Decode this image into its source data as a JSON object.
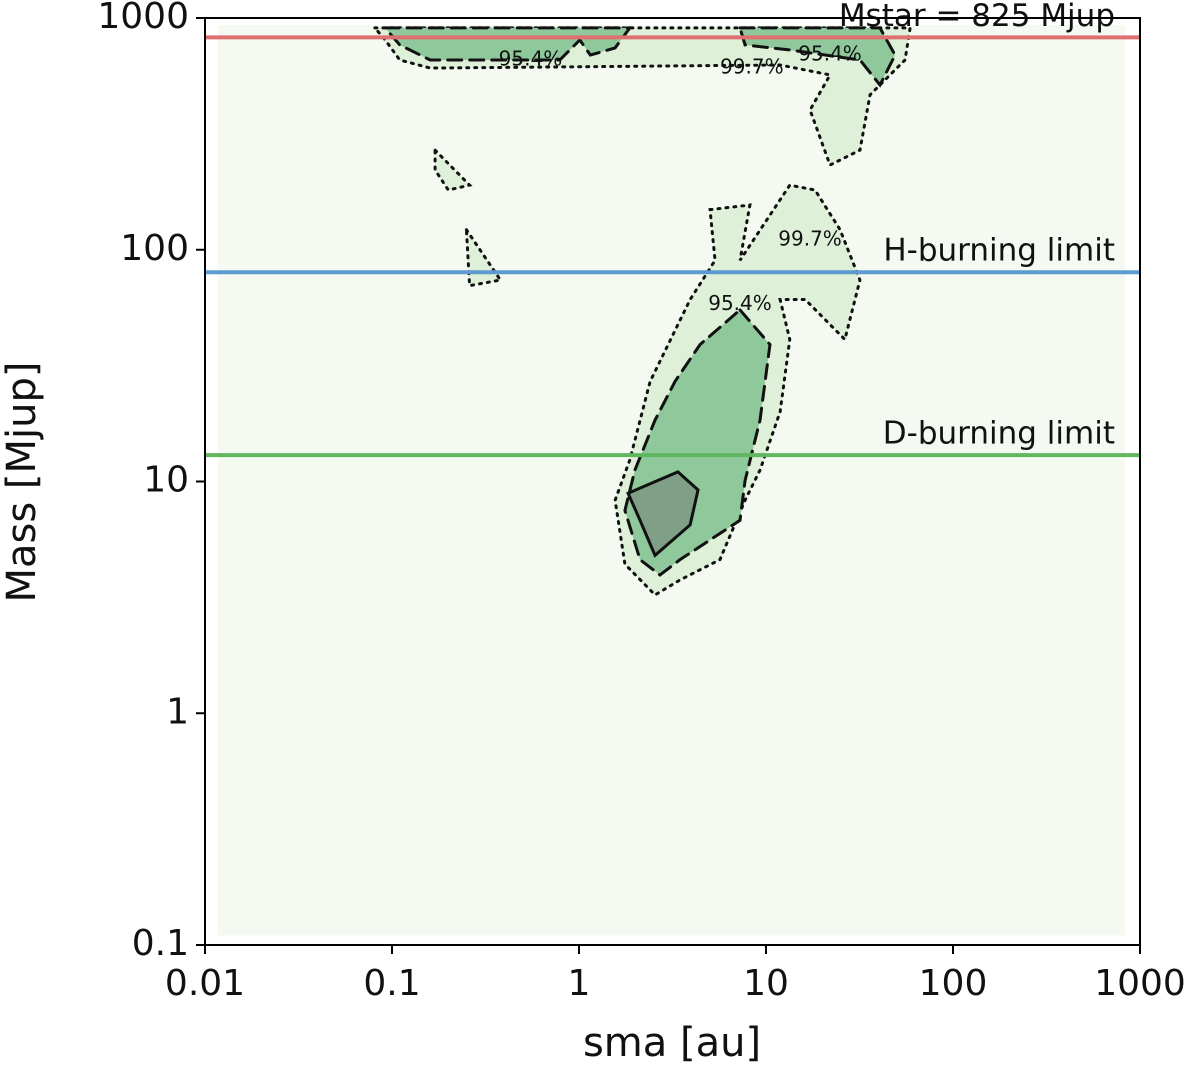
{
  "chart_data": {
    "type": "contour",
    "xlabel": "sma [au]",
    "ylabel": "Mass [Mjup]",
    "xscale": "log",
    "yscale": "log",
    "xlim": [
      0.01,
      1000
    ],
    "xticks": [
      0.01,
      0.1,
      1,
      10,
      100,
      1000
    ],
    "ylim": [
      0.1,
      1000
    ],
    "yticks": [
      0.1,
      1,
      10,
      100,
      1000
    ],
    "contours": [
      {
        "fill": "#f4faf2",
        "linestyle": "none",
        "polygons": [
          {
            "x": [
              0.0117,
              832,
              832,
              0.0117
            ],
            "y": [
              933,
              933,
              0.11,
              0.11
            ]
          }
        ]
      },
      {
        "fill": "#dff0d9",
        "linestyle": "dotted",
        "polygons": [
          {
            "x": [
              0.081,
              59,
              55.4,
              36,
              31.8,
              22,
              17.2,
              22,
              11.9,
              0.16,
              0.11,
              0.092
            ],
            "y": [
              906,
              906,
              659,
              466,
              269,
              232,
              401,
              568,
              627,
              608,
              659,
              804
            ]
          },
          {
            "x": [
              5.02,
              8.2,
              7.26,
              13.4,
              18.3,
              24.9,
              31.8,
              26.4,
              16.2,
              11.9,
              13.4,
              11.9,
              9.29,
              7.73,
              5.67,
              3.47,
              2.55,
              1.76,
              1.56,
              1.87,
              2.4,
              3.93,
              5.34
            ],
            "y": [
              149,
              156,
              90,
              190,
              181,
              122,
              74,
              41,
              61,
              61,
              41,
              20,
              11.2,
              8.3,
              4.6,
              3.76,
              3.24,
              4.4,
              8.3,
              12.4,
              27,
              61,
              90
            ]
          },
          {
            "x": [
              0.17,
              0.26,
              0.2,
              0.17
            ],
            "y": [
              269,
              190,
              181,
              221
            ]
          },
          {
            "x": [
              0.25,
              0.38,
              0.26
            ],
            "y": [
              122,
              74,
              70
            ]
          }
        ]
      },
      {
        "fill": "#8fc99b",
        "linestyle": "dashed",
        "polygons": [
          {
            "x": [
              0.092,
              1.87,
              1.56,
              1.15,
              1.01,
              0.79,
              0.16,
              0.11
            ],
            "y": [
              906,
              906,
              743,
              692,
              804,
              659,
              659,
              765
            ]
          },
          {
            "x": [
              7.26,
              40.7,
              49,
              40.7,
              31.8,
              13.4,
              7.73
            ],
            "y": [
              906,
              906,
              692,
              514,
              659,
              728,
              765
            ]
          },
          {
            "x": [
              7.26,
              10.5,
              9.29,
              7.73,
              7.26,
              3.47,
              2.71,
              2.12,
              1.76,
              1.99,
              2.55,
              3.26,
              4.44
            ],
            "y": [
              55,
              39,
              18.4,
              10.1,
              6.8,
              4.6,
              3.95,
              4.6,
              7.5,
              11.2,
              18.4,
              27,
              39
            ]
          }
        ]
      },
      {
        "fill": "#7f9f86",
        "linestyle": "solid",
        "polygons": [
          {
            "x": [
              1.83,
              3.38,
              4.33,
              3.93,
              2.55,
              2.12
            ],
            "y": [
              8.9,
              11,
              9.2,
              6.5,
              4.8,
              6.8
            ]
          }
        ]
      }
    ],
    "contour_labels": [
      {
        "text": "95.4%",
        "x": 0.55,
        "y": 659
      },
      {
        "text": "99.7%",
        "x": 8.4,
        "y": 608
      },
      {
        "text": "95.4%",
        "x": 22,
        "y": 692
      },
      {
        "text": "99.7%",
        "x": 17.2,
        "y": 110
      },
      {
        "text": "95.4%",
        "x": 7.26,
        "y": 58
      }
    ],
    "hlines": [
      {
        "label": "Mstar = 825 Mjup",
        "value": 825,
        "color": "#e07070"
      },
      {
        "label": "H-burning limit",
        "value": 80,
        "color": "#5b9bd0"
      },
      {
        "label": "D-burning limit",
        "value": 13,
        "color": "#5fb85f"
      }
    ]
  }
}
